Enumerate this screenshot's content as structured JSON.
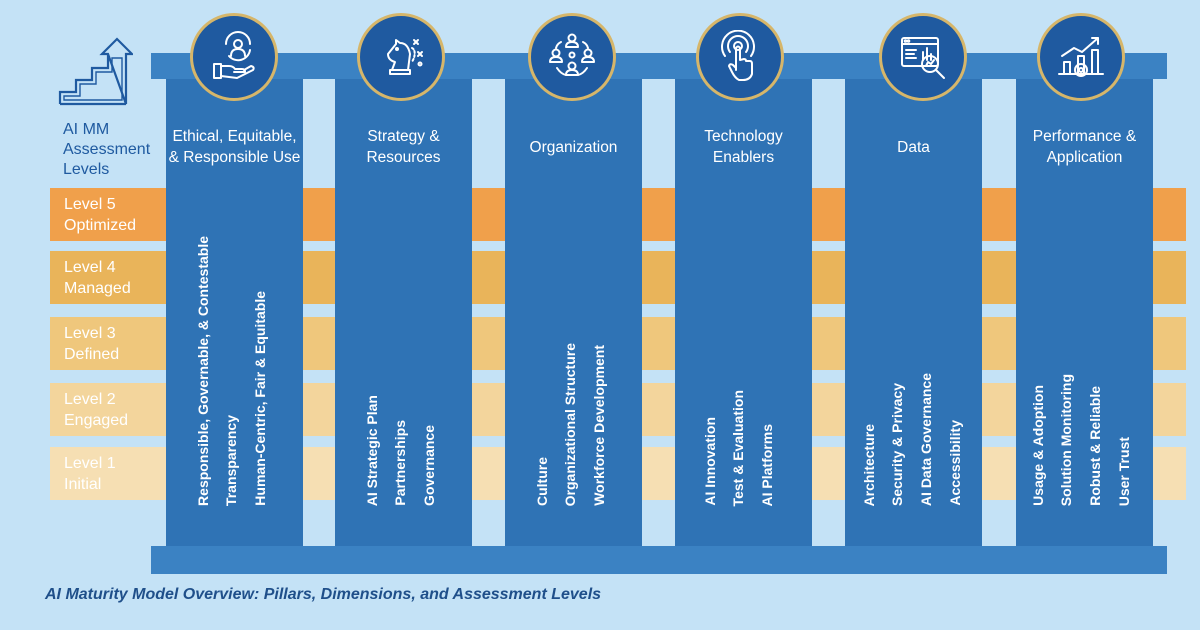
{
  "levels_heading": [
    "AI MM",
    "Assessment",
    "Levels"
  ],
  "levels": [
    {
      "line1": "Level 5",
      "line2": "Optimized",
      "color": "#f0a04b"
    },
    {
      "line1": "Level 4",
      "line2": "Managed",
      "color": "#e9b45a"
    },
    {
      "line1": "Level 3",
      "line2": "Defined",
      "color": "#efc77c"
    },
    {
      "line1": "Level 2",
      "line2": "Engaged",
      "color": "#f3d59c"
    },
    {
      "line1": "Level 1",
      "line2": "Initial",
      "color": "#f6dfb3"
    }
  ],
  "pillars": [
    {
      "title": "Ethical, Equitable, & Responsible Use",
      "icon": "hand-people-icon",
      "dimensions": [
        "Responsible, Governable, & Contestable",
        "Transparency",
        "Human-Centric, Fair & Equitable"
      ]
    },
    {
      "title": "Strategy & Resources",
      "icon": "chess-knight-icon",
      "dimensions": [
        "AI Strategic Plan",
        "Partnerships",
        "Governance"
      ]
    },
    {
      "title": "Organization",
      "icon": "org-people-icon",
      "dimensions": [
        "Culture",
        "Organizational Structure",
        "Workforce Development"
      ]
    },
    {
      "title": "Technology Enablers",
      "icon": "touch-tech-icon",
      "dimensions": [
        "AI Innovation",
        "Test & Evaluation",
        "AI Platforms"
      ]
    },
    {
      "title": "Data",
      "icon": "data-magnifier-icon",
      "dimensions": [
        "Architecture",
        "Security & Privacy",
        "AI Data Governance",
        "Accessibility"
      ]
    },
    {
      "title": "Performance & Application",
      "icon": "growth-chart-icon",
      "dimensions": [
        "Usage & Adoption",
        "Solution Monitoring",
        "Robust & Reliable",
        "User Trust"
      ]
    }
  ],
  "caption": "AI Maturity Model Overview: Pillars, Dimensions, and Assessment Levels",
  "colors": {
    "background": "#c4e2f6",
    "pillar": "#2f73b5",
    "beam": "#3b82c3",
    "icon_circle": "#1f5aa0",
    "icon_ring": "#d6b66a"
  }
}
